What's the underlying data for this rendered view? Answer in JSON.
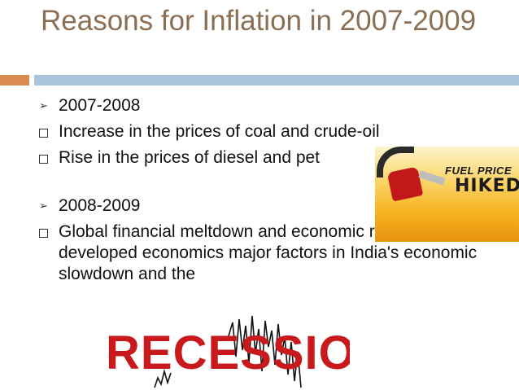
{
  "title": "Reasons for Inflation in 2007-2009",
  "sections": [
    {
      "heading": "2007-2008",
      "items": [
        "Increase in the prices of coal and crude-oil",
        "Rise in the prices of diesel and pet"
      ]
    },
    {
      "heading": "2008-2009",
      "items": [
        "Global financial meltdown and economic recession in developed economics major factors in India's economic slowdown and the"
      ]
    }
  ],
  "images": {
    "fuel": {
      "line1": "FUEL PRICE",
      "line2": "HIKED"
    },
    "recession": {
      "word": "RECESSION"
    }
  },
  "colors": {
    "title": "#8a6f55",
    "accent_orange": "#d98a4e",
    "accent_blue": "#a9c4dc",
    "recession_red": "#c8191c"
  }
}
